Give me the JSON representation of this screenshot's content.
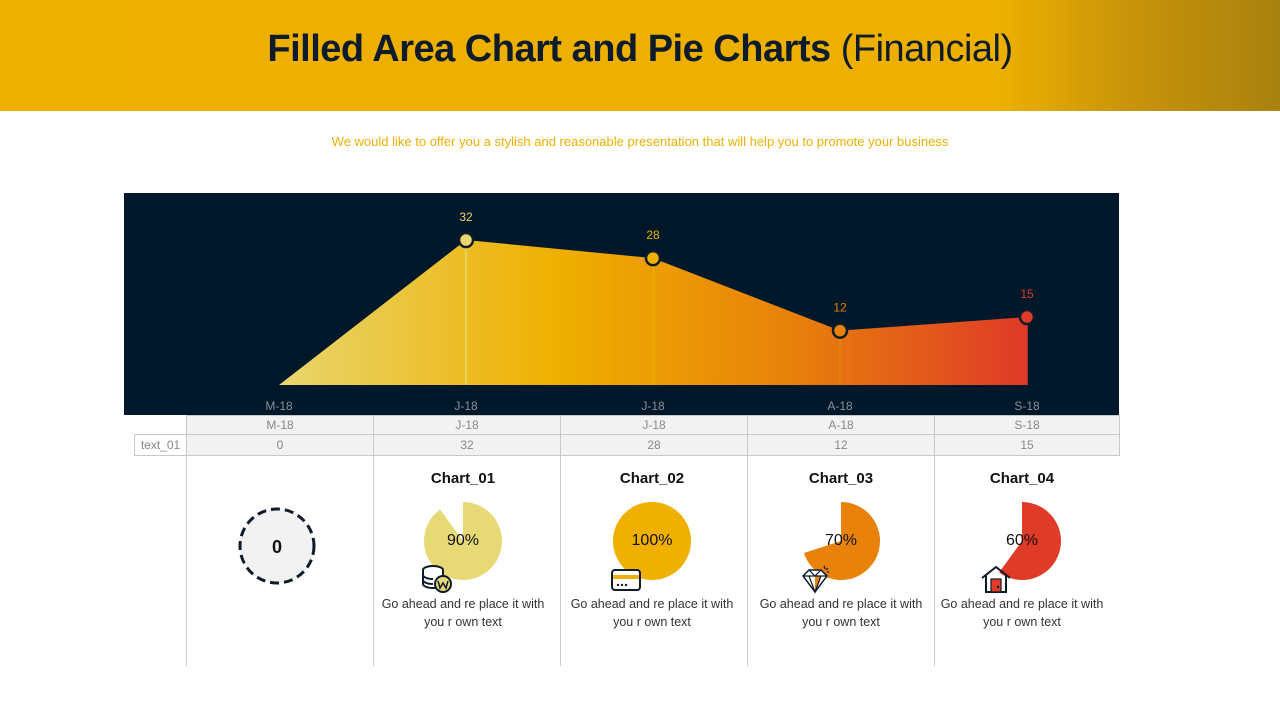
{
  "header": {
    "title_bold": "Filled Area Chart and Pie Charts",
    "title_light": "(Financial)",
    "subtitle": "We would like to offer you a stylish and reasonable presentation that will help you to promote your business"
  },
  "chart_data": [
    {
      "type": "area",
      "categories": [
        "M-18",
        "J-18",
        "J-18",
        "A-18",
        "S-18"
      ],
      "values": [
        0,
        32,
        28,
        12,
        15
      ],
      "data_labels": [
        "",
        "32",
        "28",
        "12",
        "15"
      ],
      "ylim": [
        0,
        32
      ],
      "grid": false,
      "colors": {
        "background": "#00182a",
        "gradient": [
          "#e8d66e",
          "#efb000",
          "#e8820a",
          "#e03a28"
        ],
        "marker_colors": [
          "#e8d66e",
          "#e8d66e",
          "#efb000",
          "#e8820a",
          "#e03a28"
        ]
      }
    },
    {
      "type": "table",
      "header": [
        "M-18",
        "J-18",
        "J-18",
        "A-18",
        "S-18"
      ],
      "row_label": "text_01",
      "row": [
        "0",
        "32",
        "28",
        "12",
        "15"
      ]
    },
    {
      "type": "pie",
      "zero_value": "0",
      "charts": [
        {
          "title": "Chart_01",
          "value": 90,
          "label": "90%",
          "color": "#e8d977",
          "icon": "coins-won-icon",
          "desc": "Go ahead and re place it with you r own text"
        },
        {
          "title": "Chart_02",
          "value": 100,
          "label": "100%",
          "color": "#efb000",
          "icon": "credit-card-icon",
          "desc": "Go ahead and re place it with you r own text"
        },
        {
          "title": "Chart_03",
          "value": 70,
          "label": "70%",
          "color": "#e8820a",
          "icon": "diamond-icon",
          "desc": "Go ahead and re place it with you r own text"
        },
        {
          "title": "Chart_04",
          "value": 60,
          "label": "60%",
          "color": "#e03a28",
          "icon": "house-icon",
          "desc": "Go ahead and re place it with you r own text"
        }
      ]
    }
  ]
}
